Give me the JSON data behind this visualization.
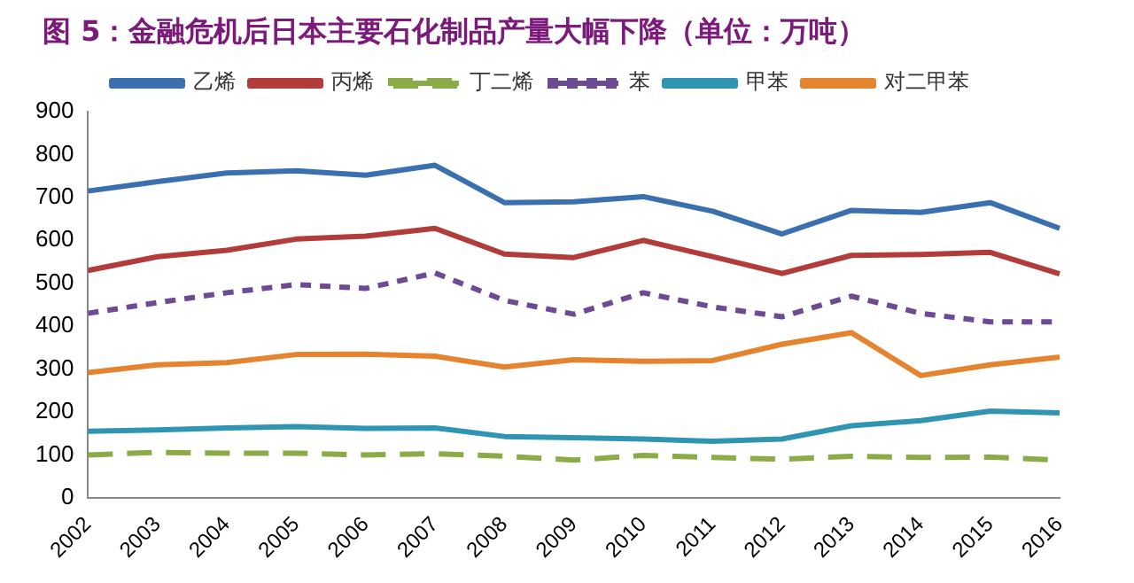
{
  "chart_data": {
    "type": "line",
    "title": "图 5：金融危机后日本主要石化制品产量大幅下降（单位：万吨）",
    "categories": [
      "2002",
      "2003",
      "2004",
      "2005",
      "2006",
      "2007",
      "2008",
      "2009",
      "2010",
      "2011",
      "2012",
      "2013",
      "2014",
      "2015",
      "2016"
    ],
    "series": [
      {
        "name": "乙烯",
        "color": "#3a6fb0",
        "line_style": "solid",
        "values": [
          715,
          737,
          757,
          762,
          752,
          775,
          688,
          690,
          702,
          668,
          615,
          670,
          665,
          688,
          628
        ]
      },
      {
        "name": "丙烯",
        "color": "#b23c3a",
        "line_style": "solid",
        "values": [
          530,
          562,
          577,
          603,
          610,
          628,
          568,
          560,
          600,
          562,
          523,
          565,
          567,
          572,
          522
        ]
      },
      {
        "name": "丁二烯",
        "color": "#8aab45",
        "line_style": "dashed",
        "values": [
          100,
          106,
          104,
          104,
          100,
          103,
          97,
          88,
          99,
          94,
          90,
          97,
          94,
          95,
          88
        ]
      },
      {
        "name": "苯",
        "color": "#6d4a94",
        "line_style": "dotted",
        "values": [
          430,
          455,
          478,
          497,
          488,
          524,
          460,
          428,
          478,
          445,
          422,
          470,
          430,
          410,
          410
        ]
      },
      {
        "name": "甲苯",
        "color": "#2f95b3",
        "line_style": "solid",
        "values": [
          155,
          158,
          163,
          166,
          162,
          163,
          143,
          140,
          137,
          132,
          137,
          168,
          180,
          202,
          198
        ]
      },
      {
        "name": "对二甲苯",
        "color": "#e5832f",
        "line_style": "solid",
        "values": [
          292,
          310,
          315,
          334,
          335,
          330,
          305,
          322,
          318,
          320,
          358,
          385,
          285,
          310,
          328
        ]
      }
    ],
    "ylim": [
      0,
      900
    ],
    "yticks": [
      0,
      100,
      200,
      300,
      400,
      500,
      600,
      700,
      800,
      900
    ],
    "grid": false,
    "legend": "top",
    "marker": "none"
  }
}
